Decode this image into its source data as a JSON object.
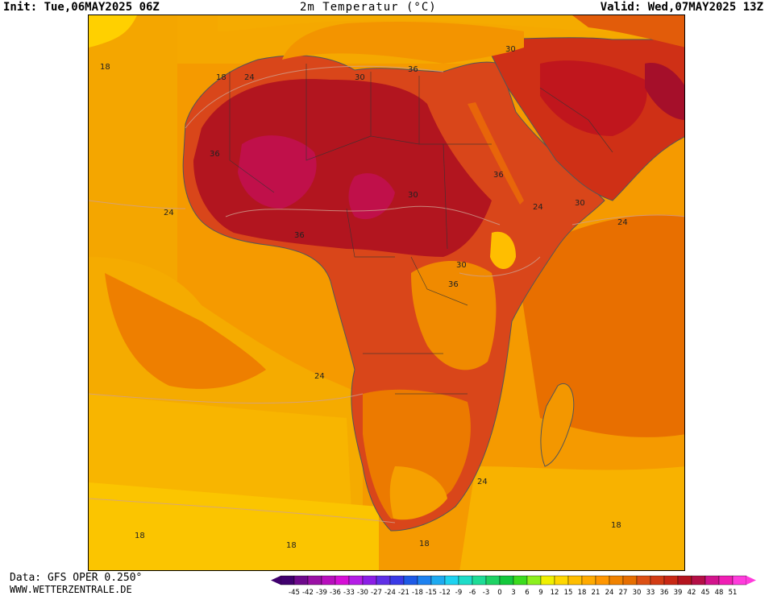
{
  "header": {
    "init": "Init: Tue,06MAY2025 06Z",
    "title": "2m Temperatur (°C)",
    "valid": "Valid: Wed,07MAY2025 13Z"
  },
  "footer": {
    "source": "Data: GFS OPER 0.250°",
    "website": "WWW.WETTERZENTRALE.DE"
  },
  "map": {
    "region": "Africa",
    "field": "2m temperature",
    "contour_labels": [
      "18",
      "18",
      "24",
      "30",
      "36",
      "30",
      "36",
      "36",
      "30",
      "30",
      "24",
      "36",
      "36",
      "30",
      "24",
      "24",
      "24",
      "24",
      "18",
      "18",
      "18",
      "18"
    ]
  },
  "legend": {
    "ticks": [
      "-45",
      "-42",
      "-39",
      "-36",
      "-33",
      "-30",
      "-27",
      "-24",
      "-21",
      "-18",
      "-15",
      "-12",
      "-9",
      "-6",
      "-3",
      "0",
      "3",
      "6",
      "9",
      "12",
      "15",
      "18",
      "21",
      "24",
      "27",
      "30",
      "33",
      "36",
      "39",
      "42",
      "45",
      "48",
      "51"
    ],
    "colors": [
      "#40006e",
      "#6e0a8c",
      "#9a11a5",
      "#b80fbd",
      "#d60fd6",
      "#b41de6",
      "#8b1ee6",
      "#5f2fe6",
      "#3a3ae6",
      "#1e5ae6",
      "#1e82f0",
      "#1eaaf0",
      "#1ed2f0",
      "#1edcc8",
      "#1edc96",
      "#1ed264",
      "#14c83c",
      "#3cdc1e",
      "#8cf01e",
      "#f0f000",
      "#ffd700",
      "#ffbe00",
      "#ffaa00",
      "#ff9600",
      "#f08200",
      "#e66e00",
      "#dc5014",
      "#d23c14",
      "#c82814",
      "#b4141e",
      "#b40f46",
      "#d2148c",
      "#f01eb4",
      "#ff3cdc"
    ]
  }
}
